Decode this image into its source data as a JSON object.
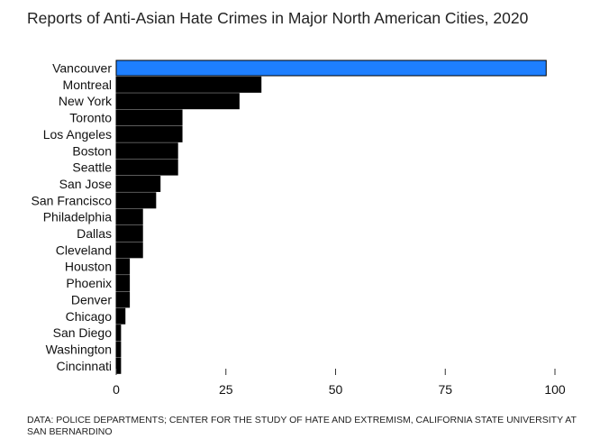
{
  "chart_data": {
    "type": "bar",
    "orientation": "horizontal",
    "title": "Reports of Anti-Asian Hate Crimes in Major North American Cities, 2020",
    "categories": [
      "Vancouver",
      "Montreal",
      "New York",
      "Toronto",
      "Los Angeles",
      "Boston",
      "Seattle",
      "San Jose",
      "San Francisco",
      "Philadelphia",
      "Dallas",
      "Cleveland",
      "Houston",
      "Phoenix",
      "Denver",
      "Chicago",
      "San Diego",
      "Washington",
      "Cincinnati"
    ],
    "values": [
      98,
      33,
      28,
      15,
      15,
      14,
      14,
      10,
      9,
      6,
      6,
      6,
      3,
      3,
      3,
      2,
      1,
      1,
      1
    ],
    "xlim": [
      0,
      100
    ],
    "xticks": [
      0,
      25,
      50,
      75,
      100
    ],
    "xlabel": "",
    "ylabel": "",
    "grid": false,
    "highlight_index": 0,
    "colors": {
      "highlight": "#1e7fff",
      "default": "#000000"
    }
  },
  "source": "DATA: POLICE DEPARTMENTS; CENTER FOR THE STUDY OF HATE AND EXTREMISM, CALIFORNIA STATE UNIVERSITY AT SAN BERNARDINO"
}
